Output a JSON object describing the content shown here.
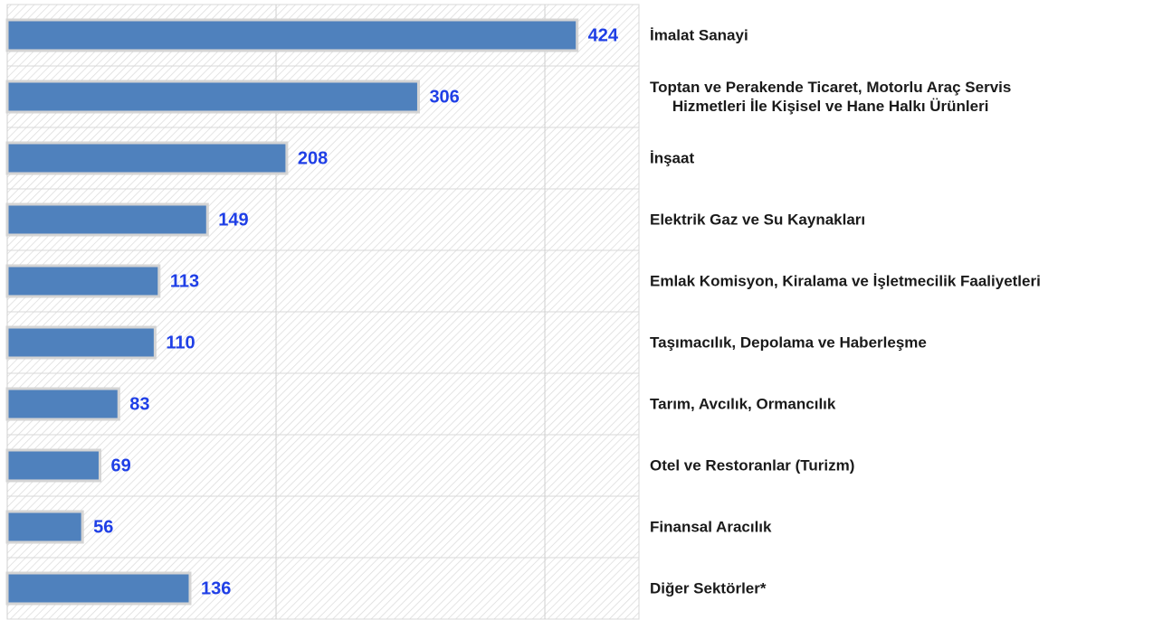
{
  "chart_data": {
    "type": "barh",
    "categories": [
      "İmalat Sanayi",
      "Toptan ve Perakende Ticaret, Motorlu Araç Servis\nHizmetleri İle Kişisel ve Hane Halkı Ürünleri",
      "İnşaat",
      "Elektrik Gaz ve Su Kaynakları",
      "Emlak Komisyon, Kiralama ve İşletmecilik Faaliyetleri",
      "Taşımacılık, Depolama ve Haberleşme",
      "Tarım, Avcılık, Ormancılık",
      "Otel ve Restoranlar (Turizm)",
      "Finansal Aracılık",
      "Diğer Sektörler*"
    ],
    "values": [
      424,
      306,
      208,
      149,
      113,
      110,
      83,
      69,
      56,
      136
    ],
    "color": "#4f81bd",
    "label_color": "#1f3fe6",
    "xlim": [
      0,
      470
    ],
    "xticks": [
      0,
      200,
      400
    ],
    "grid": true
  }
}
